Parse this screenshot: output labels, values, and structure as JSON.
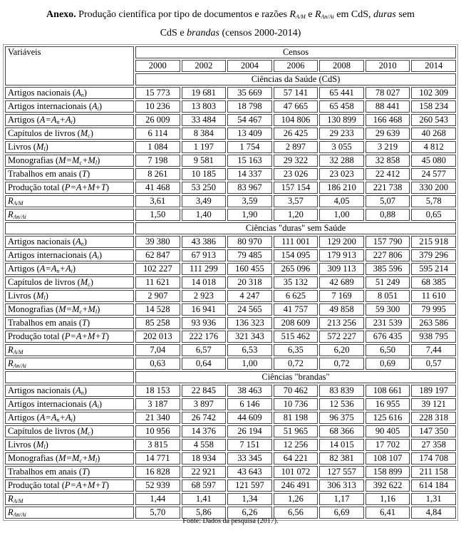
{
  "title": {
    "bold": "Anexo.",
    "line1": " Produção científica por tipo de documentos e razões ",
    "r1": "R",
    "r1_sub": "A/M",
    "and": " e ",
    "r2": "R",
    "r2_sub": "An/Ai",
    "mid": " em CdS, ",
    "duras": "duras",
    "sem": " sem",
    "line2a": "CdS e ",
    "brandas": "brandas",
    "line2b": " (censos 2000-2014)"
  },
  "header": {
    "variables": "Variáveis",
    "censos": "Censos",
    "years": [
      "2000",
      "2002",
      "2004",
      "2006",
      "2008",
      "2010",
      "2014"
    ]
  },
  "sections": [
    {
      "title": "Ciências da Saúde (CdS)",
      "rows": [
        {
          "label": "Artigos nacionais",
          "formula": [
            [
              "A",
              "n"
            ]
          ],
          "values": [
            "15 773",
            "19 681",
            "35 669",
            "57 141",
            "65 441",
            "78 027",
            "102 309"
          ]
        },
        {
          "label": "Artigos internacionais",
          "formula": [
            [
              "A",
              "i"
            ]
          ],
          "values": [
            "10 236",
            "13 803",
            "18 798",
            "47 665",
            "65 458",
            "88 441",
            "158 234"
          ]
        },
        {
          "label": "Artigos",
          "formula": [
            [
              "A=A",
              "n"
            ],
            [
              "+A",
              "i"
            ]
          ],
          "values": [
            "26 009",
            "33 484",
            "54 467",
            "104 806",
            "130 899",
            "166 468",
            "260 543"
          ]
        },
        {
          "label": "Capítulos de livros",
          "formula": [
            [
              "M",
              "c"
            ]
          ],
          "values": [
            "6 114",
            "8 384",
            "13 409",
            "26 425",
            "29 233",
            "29 639",
            "40 268"
          ]
        },
        {
          "label": "Livros",
          "formula": [
            [
              "M",
              "l"
            ]
          ],
          "values": [
            "1 084",
            "1 197",
            "1 754",
            "2 897",
            "3 055",
            "3 219",
            "4 812"
          ]
        },
        {
          "label": "Monografias",
          "formula": [
            [
              "M=M",
              "c"
            ],
            [
              "+M",
              "l"
            ]
          ],
          "values": [
            "7 198",
            "9 581",
            "15 163",
            "29 322",
            "32 288",
            "32 858",
            "45 080"
          ]
        },
        {
          "label": "Trabalhos em anais",
          "formula": [
            [
              "T",
              ""
            ]
          ],
          "values": [
            "8 261",
            "10 185",
            "14 337",
            "23 026",
            "23 023",
            "22 412",
            "24 577"
          ]
        },
        {
          "label": "Produção total",
          "formula": [
            [
              "P=A+M+T",
              ""
            ]
          ],
          "values": [
            "41 468",
            "53 250",
            "83 967",
            "157 154",
            "186 210",
            "221 738",
            "330 200"
          ]
        },
        {
          "label": "",
          "formula": [
            [
              "R",
              "A/M"
            ]
          ],
          "values": [
            "3,61",
            "3,49",
            "3,59",
            "3,57",
            "4,05",
            "5,07",
            "5,78"
          ]
        },
        {
          "label": "",
          "formula": [
            [
              "R",
              "An/Ai"
            ]
          ],
          "values": [
            "1,50",
            "1,40",
            "1,90",
            "1,20",
            "1,00",
            "0,88",
            "0,65"
          ]
        }
      ]
    },
    {
      "title": "Ciências \"duras\" sem Saúde",
      "rows": [
        {
          "label": "Artigos nacionais",
          "formula": [
            [
              "A",
              "n"
            ]
          ],
          "values": [
            "39 380",
            "43 386",
            "80 970",
            "111 001",
            "129 200",
            "157 790",
            "215 918"
          ]
        },
        {
          "label": "Artigos internacionais",
          "formula": [
            [
              "A",
              "i"
            ]
          ],
          "values": [
            "62 847",
            "67 913",
            "79 485",
            "154 095",
            "179 913",
            "227 806",
            "379 296"
          ]
        },
        {
          "label": "Artigos",
          "formula": [
            [
              "A=A",
              "n"
            ],
            [
              "+A",
              "i"
            ]
          ],
          "values": [
            "102 227",
            "111 299",
            "160 455",
            "265 096",
            "309 113",
            "385 596",
            "595 214"
          ]
        },
        {
          "label": "Capítulos de livros",
          "formula": [
            [
              "M",
              "c"
            ]
          ],
          "values": [
            "11 621",
            "14 018",
            "20 318",
            "35 132",
            "42 689",
            "51 249",
            "68 385"
          ]
        },
        {
          "label": "Livros",
          "formula": [
            [
              "M",
              "l"
            ]
          ],
          "values": [
            "2 907",
            "2 923",
            "4 247",
            "6 625",
            "7 169",
            "8 051",
            "11 610"
          ]
        },
        {
          "label": "Monografias",
          "formula": [
            [
              "M=M",
              "c"
            ],
            [
              "+M",
              "l"
            ]
          ],
          "values": [
            "14 528",
            "16 941",
            "24 565",
            "41 757",
            "49 858",
            "59 300",
            "79 995"
          ]
        },
        {
          "label": "Trabalhos em anais",
          "formula": [
            [
              "T",
              ""
            ]
          ],
          "values": [
            "85 258",
            "93 936",
            "136 323",
            "208 609",
            "213 256",
            "231 539",
            "263 586"
          ]
        },
        {
          "label": "Produção total",
          "formula": [
            [
              "P=A+M+T",
              ""
            ]
          ],
          "values": [
            "202 013",
            "222 176",
            "321 343",
            "515 462",
            "572 227",
            "676 435",
            "938 795"
          ]
        },
        {
          "label": "",
          "formula": [
            [
              "R",
              "A/M"
            ]
          ],
          "values": [
            "7,04",
            "6,57",
            "6,53",
            "6,35",
            "6,20",
            "6,50",
            "7,44"
          ]
        },
        {
          "label": "",
          "formula": [
            [
              "R",
              "An/Ai"
            ]
          ],
          "values": [
            "0,63",
            "0,64",
            "1,00",
            "0,72",
            "0,72",
            "0,69",
            "0,57"
          ]
        }
      ]
    },
    {
      "title": "Ciências \"brandas\"",
      "rows": [
        {
          "label": "Artigos nacionais",
          "formula": [
            [
              "A",
              "n"
            ]
          ],
          "values": [
            "18 153",
            "22 845",
            "38 463",
            "70 462",
            "83 839",
            "108 661",
            "189 197"
          ]
        },
        {
          "label": "Artigos internacionais",
          "formula": [
            [
              "A",
              "i"
            ]
          ],
          "values": [
            "3 187",
            "3 897",
            "6 146",
            "10 736",
            "12 536",
            "16 955",
            "39 121"
          ]
        },
        {
          "label": "Artigos",
          "formula": [
            [
              "A=A",
              "n"
            ],
            [
              "+A",
              "i"
            ]
          ],
          "values": [
            "21 340",
            "26 742",
            "44 609",
            "81 198",
            "96 375",
            "125 616",
            "228 318"
          ]
        },
        {
          "label": "Capítulos de livros",
          "formula": [
            [
              "M",
              "c"
            ]
          ],
          "values": [
            "10 956",
            "14 376",
            "26 194",
            "51 965",
            "68 366",
            "90 405",
            "147 350"
          ]
        },
        {
          "label": "Livros",
          "formula": [
            [
              "M",
              "l"
            ]
          ],
          "values": [
            "3 815",
            "4 558",
            "7 151",
            "12 256",
            "14 015",
            "17 702",
            "27 358"
          ]
        },
        {
          "label": "Monografias",
          "formula": [
            [
              "M=M",
              "c"
            ],
            [
              "+M",
              "l"
            ]
          ],
          "values": [
            "14 771",
            "18 934",
            "33 345",
            "64 221",
            "82 381",
            "108 107",
            "174 708"
          ]
        },
        {
          "label": "Trabalhos em anais",
          "formula": [
            [
              "T",
              ""
            ]
          ],
          "values": [
            "16 828",
            "22 921",
            "43 643",
            "101 072",
            "127 557",
            "158 899",
            "211 158"
          ]
        },
        {
          "label": "Produção total",
          "formula": [
            [
              "P=A+M+T",
              ""
            ]
          ],
          "values": [
            "52 939",
            "68 597",
            "121 597",
            "246 491",
            "306 313",
            "392 622",
            "614 184"
          ]
        },
        {
          "label": "",
          "formula": [
            [
              "R",
              "A/M"
            ]
          ],
          "values": [
            "1,44",
            "1,41",
            "1,34",
            "1,26",
            "1,17",
            "1,16",
            "1,31"
          ]
        },
        {
          "label": "",
          "formula": [
            [
              "R",
              "An/Ai"
            ]
          ],
          "values": [
            "5,70",
            "5,86",
            "6,26",
            "6,56",
            "6,69",
            "6,41",
            "4,84"
          ]
        }
      ]
    }
  ],
  "footer": "Fonte: Dados da pesquisa (2017)."
}
